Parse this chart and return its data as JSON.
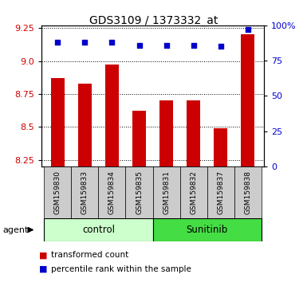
{
  "title": "GDS3109 / 1373332_at",
  "samples": [
    "GSM159830",
    "GSM159833",
    "GSM159834",
    "GSM159835",
    "GSM159831",
    "GSM159832",
    "GSM159837",
    "GSM159838"
  ],
  "bar_values": [
    8.87,
    8.83,
    8.97,
    8.62,
    8.7,
    8.7,
    8.49,
    9.2
  ],
  "percentile_values": [
    88,
    88,
    88,
    86,
    86,
    86,
    85,
    97
  ],
  "ylim_left": [
    8.2,
    9.27
  ],
  "ylim_right": [
    0,
    100
  ],
  "yticks_left": [
    8.25,
    8.5,
    8.75,
    9.0,
    9.25
  ],
  "yticks_right": [
    0,
    25,
    50,
    75,
    100
  ],
  "ytick_labels_right": [
    "0",
    "25",
    "50",
    "75",
    "100%"
  ],
  "bar_color": "#cc0000",
  "dot_color": "#0000cc",
  "grid_color": "#000000",
  "control_label": "control",
  "sunitinib_label": "Sunitinib",
  "agent_label": "agent",
  "legend_bar_label": "transformed count",
  "legend_dot_label": "percentile rank within the sample",
  "control_bg": "#ccffcc",
  "sunitinib_bg": "#44dd44",
  "xlabel_bg": "#cccccc",
  "bar_width": 0.5,
  "figsize": [
    3.85,
    3.54
  ],
  "dpi": 100
}
